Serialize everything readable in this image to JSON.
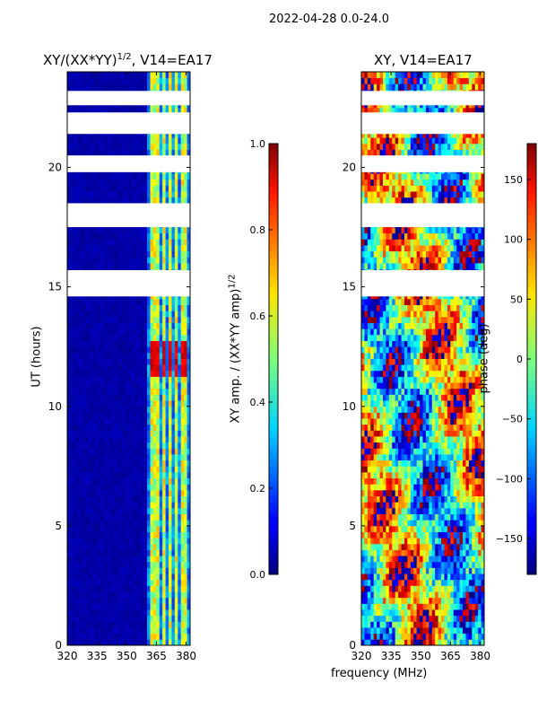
{
  "suptitle": "2022-04-28 0.0-24.0",
  "panels": {
    "amp": {
      "title_main": "XY/(XX*YY)",
      "title_sup": "1/2",
      "title_tail": ", V14=EA17"
    },
    "phase": {
      "title": "XY, V14=EA17"
    }
  },
  "labels": {
    "ylabel": "UT (hours)",
    "xlabel": "frequency (MHz)",
    "amp_cbar_label_main": "XY amp. / (XX*YY amp)",
    "amp_cbar_label_sup": "1/2",
    "phase_cbar_label": "phase (deg)"
  },
  "chart_data": [
    {
      "type": "heatmap",
      "title": "XY/(XX*YY)^1/2, V14=EA17",
      "xlabel": "",
      "ylabel": "UT (hours)",
      "xlim": [
        320,
        382
      ],
      "ylim": [
        0,
        24
      ],
      "xticks": [
        320,
        335,
        350,
        365,
        380
      ],
      "yticks": [
        0,
        5,
        10,
        15,
        20
      ],
      "colormap": "jet",
      "clim": [
        0.0,
        1.0
      ],
      "colorbar_ticks": [
        "0.0",
        "0.2",
        "0.4",
        "0.6",
        "0.8",
        "1.0"
      ],
      "colorbar_label": "XY amp. / (XX*YY amp)^1/2",
      "low_value_region_mhz": [
        320,
        361
      ],
      "bright_channels_mhz": [
        363,
        366,
        369,
        372,
        375,
        379
      ],
      "high_amplitude_ut_range": [
        11.3,
        12.8
      ],
      "flagged_ut_ranges": [
        [
          14.6,
          15.7
        ],
        [
          17.5,
          18.5
        ],
        [
          19.8,
          20.5
        ],
        [
          21.4,
          22.3
        ],
        [
          22.6,
          23.2
        ]
      ]
    },
    {
      "type": "heatmap",
      "title": "XY, V14=EA17",
      "xlabel": "frequency (MHz)",
      "ylabel": "",
      "xlim": [
        320,
        382
      ],
      "ylim": [
        0,
        24
      ],
      "xticks": [
        320,
        335,
        350,
        365,
        380
      ],
      "yticks": [
        0,
        5,
        10,
        15,
        20
      ],
      "colormap": "jet",
      "clim": [
        -180,
        180
      ],
      "colorbar_ticks": [
        "−150",
        "−100",
        "−50",
        "0",
        "50",
        "100",
        "150"
      ],
      "colorbar_label": "phase (deg)",
      "flagged_ut_ranges": [
        [
          14.6,
          15.7
        ],
        [
          17.5,
          18.5
        ],
        [
          19.8,
          20.5
        ],
        [
          21.4,
          22.3
        ],
        [
          22.6,
          23.2
        ]
      ]
    }
  ]
}
